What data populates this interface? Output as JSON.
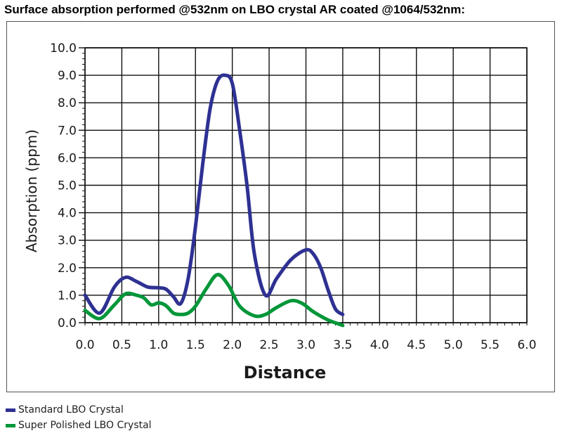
{
  "title": "Surface absorption performed @532nm on LBO crystal AR coated @1064/532nm:",
  "chart_data": {
    "type": "line",
    "xlabel": "Distance",
    "ylabel": "Absorption (ppm)",
    "xlim": [
      0,
      6
    ],
    "ylim": [
      0,
      10
    ],
    "x_ticks": [
      0.0,
      0.5,
      1.0,
      1.5,
      2.0,
      2.5,
      3.0,
      3.5,
      4.0,
      4.5,
      5.0,
      5.5,
      6.0
    ],
    "x_tick_labels": [
      "0.0",
      "0.5",
      "1.0",
      "1.5",
      "2.0",
      "2.5",
      "3.0",
      "3.5",
      "4.0",
      "4.5",
      "5.0",
      "5.5",
      "6.0"
    ],
    "y_ticks": [
      0,
      1,
      2,
      3,
      4,
      5,
      6,
      7,
      8,
      9,
      10
    ],
    "y_tick_labels": [
      "0.0",
      "1.0",
      "2.0",
      "3.0",
      "4.0",
      "5.0",
      "6.0",
      "7.0",
      "8.0",
      "9.0",
      "10.0"
    ],
    "grid": true,
    "legend_position": "bottom-left",
    "series": [
      {
        "name": "Standard LBO Crystal",
        "color": "#2e3192",
        "x": [
          0.0,
          0.2,
          0.4,
          0.55,
          0.7,
          0.85,
          1.0,
          1.1,
          1.2,
          1.3,
          1.4,
          1.5,
          1.6,
          1.7,
          1.8,
          1.9,
          2.0,
          2.1,
          2.2,
          2.3,
          2.45,
          2.6,
          2.8,
          3.0,
          3.1,
          3.2,
          3.3,
          3.4,
          3.5
        ],
        "y": [
          1.0,
          0.35,
          1.3,
          1.65,
          1.5,
          1.3,
          1.27,
          1.22,
          0.95,
          0.7,
          1.6,
          3.5,
          5.8,
          7.8,
          8.8,
          9.0,
          8.7,
          7.0,
          5.0,
          2.5,
          1.0,
          1.6,
          2.3,
          2.65,
          2.5,
          2.0,
          1.2,
          0.5,
          0.3
        ]
      },
      {
        "name": "Super Polished LBO Crystal",
        "color": "#009639",
        "x": [
          0.0,
          0.2,
          0.4,
          0.55,
          0.7,
          0.8,
          0.9,
          1.0,
          1.1,
          1.2,
          1.3,
          1.4,
          1.5,
          1.65,
          1.8,
          1.95,
          2.1,
          2.3,
          2.45,
          2.6,
          2.8,
          2.95,
          3.1,
          3.3,
          3.45,
          3.5
        ],
        "y": [
          0.45,
          0.15,
          0.65,
          1.05,
          1.0,
          0.9,
          0.65,
          0.72,
          0.62,
          0.35,
          0.3,
          0.35,
          0.6,
          1.25,
          1.75,
          1.35,
          0.6,
          0.25,
          0.3,
          0.55,
          0.8,
          0.7,
          0.4,
          0.1,
          -0.05,
          -0.1
        ]
      }
    ]
  }
}
